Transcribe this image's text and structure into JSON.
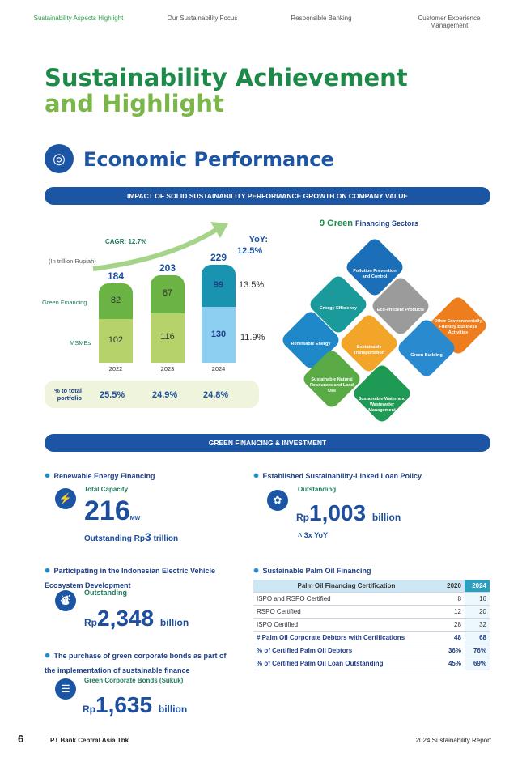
{
  "nav": [
    {
      "label": "Sustainability Aspects Highlight",
      "active": true
    },
    {
      "label": "Our Sustainability Focus"
    },
    {
      "label": "Responsible Banking"
    },
    {
      "label": "Customer Experience Management"
    }
  ],
  "title": {
    "line1": "Sustainability Achievement",
    "line2": "and Highlight"
  },
  "section": {
    "title": "Economic Performance",
    "icon": "chart-globe-icon"
  },
  "banner1": "IMPACT OF SOLID SUSTAINABILITY PERFORMANCE GROWTH ON COMPANY VALUE",
  "chart_data": {
    "type": "bar",
    "unit": "(In trillion Rupiah)",
    "cagr": "CAGR: 12.7%",
    "categories": [
      "2022",
      "2023",
      "2024"
    ],
    "series": [
      {
        "name": "MSMEs",
        "values": [
          102,
          116,
          130
        ]
      },
      {
        "name": "Green Financing",
        "values": [
          82,
          87,
          99
        ]
      }
    ],
    "totals": [
      184,
      203,
      229
    ],
    "yoy_label": "YoY:",
    "yoy_total": "12.5%",
    "yoy_green": "13.5%",
    "yoy_msme": "11.9%",
    "portfolio_label": "% to total portfolio",
    "portfolio": [
      "25.5%",
      "24.9%",
      "24.8%"
    ],
    "colors": {
      "green_prev": "#6ab344",
      "msme_prev": "#b5d36a",
      "green_2024": "#1a93b0",
      "msme_2024": "#8ccff0"
    }
  },
  "sectors": {
    "title_num": "9 Green",
    "title_rest": "Financing Sectors",
    "items": [
      {
        "label": "Pollution Prevention and Control",
        "color": "#1b6fb8"
      },
      {
        "label": "Energy Efficiency",
        "color": "#1a9a9a"
      },
      {
        "label": "Eco-efficient Products",
        "color": "#9b9b9b"
      },
      {
        "label": "Renewable Energy",
        "color": "#1e88c8"
      },
      {
        "label": "Sustainable Transportation",
        "color": "#f3a52a"
      },
      {
        "label": "Other Environmentally Friendly Business Activities",
        "color": "#ee7d1e"
      },
      {
        "label": "Green Building",
        "color": "#2a8ad0"
      },
      {
        "label": "Sustainable Natural Resources and Land Use",
        "color": "#5aab46"
      },
      {
        "label": "Sustainable Water and Wastewater Management",
        "color": "#1e9a55"
      }
    ]
  },
  "banner2": "GREEN FINANCING & INVESTMENT",
  "renewable": {
    "heading": "Renewable Energy Financing",
    "label": "Total Capacity",
    "value": "216",
    "unit": "MW",
    "outstanding_prefix": "Outstanding Rp",
    "outstanding_value": "3",
    "outstanding_unit": "trillion"
  },
  "sll": {
    "heading": "Established Sustainability-Linked Loan Policy",
    "label": "Outstanding",
    "rp": "Rp",
    "value": "1,003",
    "unit": "billion",
    "yoy": "3x YoY"
  },
  "ev": {
    "heading": "Participating in the Indonesian Electric Vehicle Ecosystem Development",
    "label": "Outstanding",
    "rp": "Rp",
    "value": "2,348",
    "unit": "billion"
  },
  "bonds": {
    "heading": "The purchase of green corporate bonds as part of the implementation of sustainable finance",
    "label": "Green Corporate Bonds (Sukuk)",
    "rp": "Rp",
    "value": "1,635",
    "unit": "billion"
  },
  "palm": {
    "heading": "Sustainable Palm Oil Financing",
    "headers": [
      "Palm Oil Financing Certification",
      "2020",
      "2024"
    ],
    "rows": [
      [
        "ISPO and RSPO Certified",
        "8",
        "16"
      ],
      [
        "RSPO Certified",
        "12",
        "20"
      ],
      [
        "ISPO Certified",
        "28",
        "32"
      ],
      [
        "# Palm Oil Corporate Debtors with Certifications",
        "48",
        "68"
      ],
      [
        "% of Certified Palm Oil Debtors",
        "36%",
        "76%"
      ],
      [
        "% of Certified Palm Oil Loan Outstanding",
        "45%",
        "69%"
      ]
    ]
  },
  "footer": {
    "page": "6",
    "company": "PT Bank Central Asia Tbk",
    "report": "2024 Sustainability Report"
  }
}
